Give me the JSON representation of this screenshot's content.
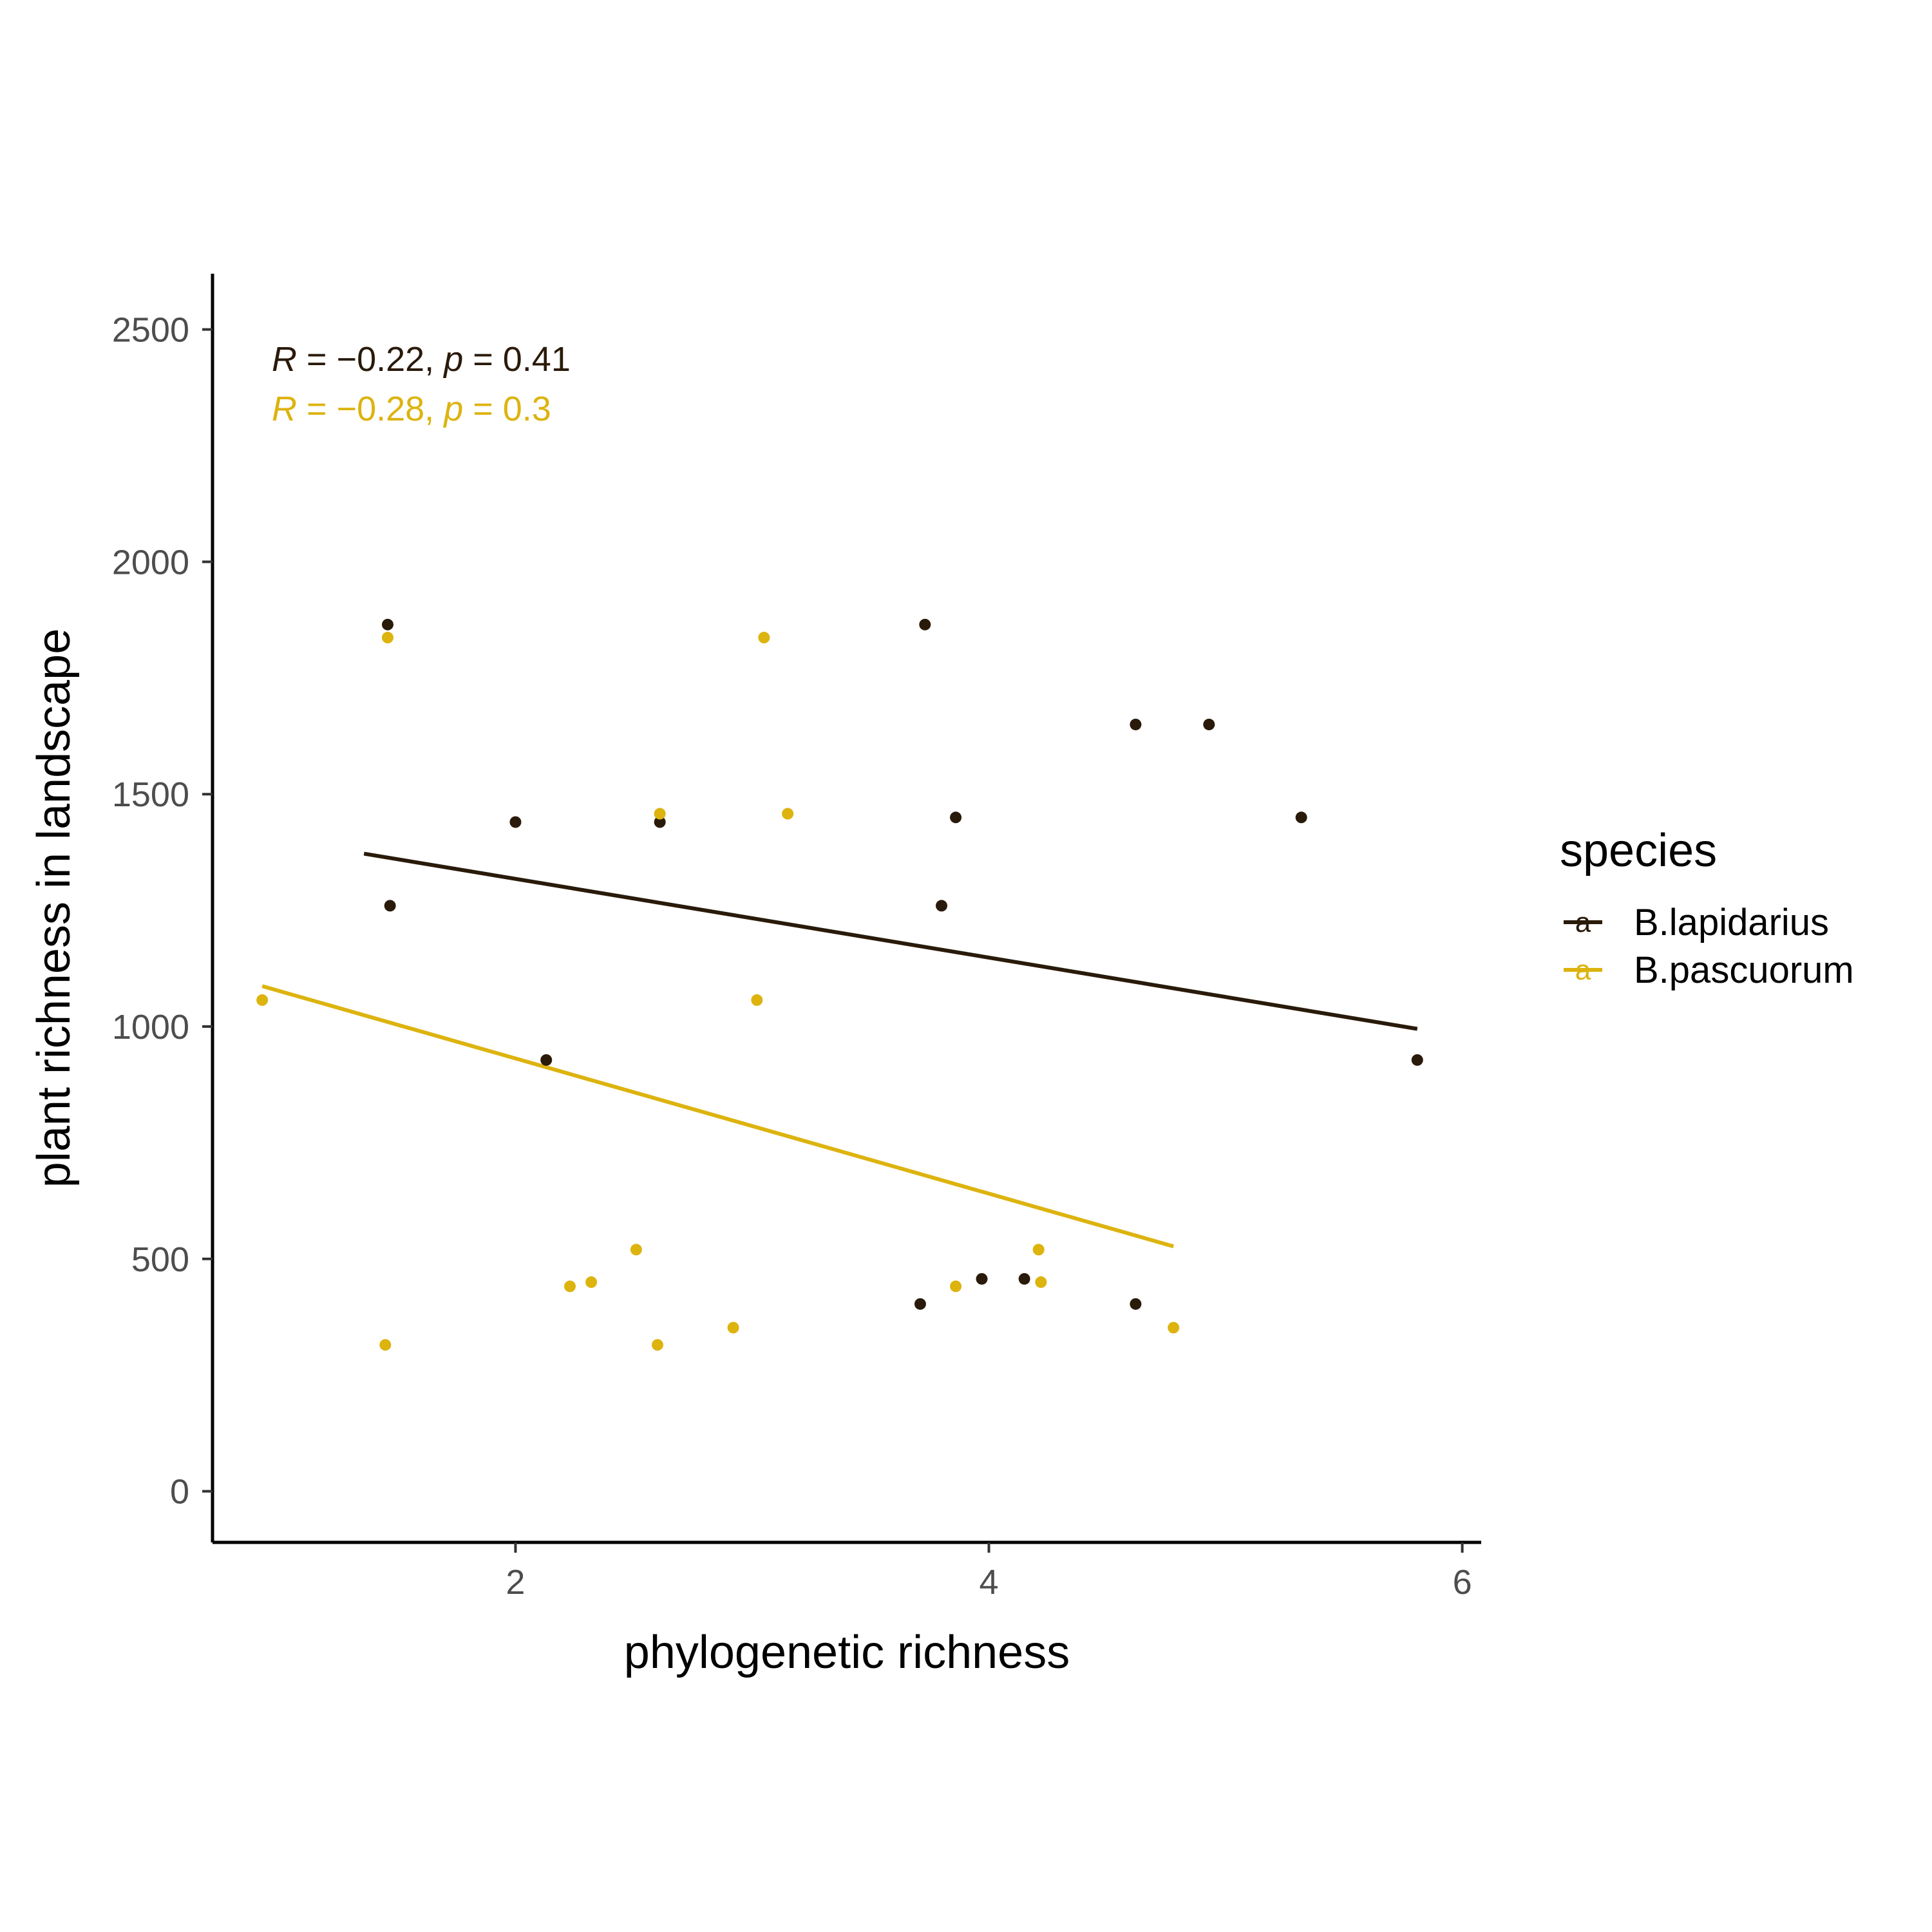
{
  "chart_data": {
    "type": "scatter",
    "title": "",
    "xlabel": "phylogenetic richness",
    "ylabel": "plant richness in landscape",
    "xlim": [
      0.72,
      6.08
    ],
    "ylim": [
      -110,
      2620
    ],
    "x_ticks": [
      2,
      4,
      6
    ],
    "y_ticks": [
      0,
      500,
      1000,
      1500,
      2000,
      2500
    ],
    "grid": false,
    "legend": {
      "title": "species",
      "position": "right",
      "key_glyph": "a"
    },
    "series": [
      {
        "name": "B.lapidarius",
        "color": "#2a1a0a",
        "points": [
          [
            1.46,
            1865
          ],
          [
            1.47,
            1260
          ],
          [
            2.0,
            1440
          ],
          [
            2.13,
            928
          ],
          [
            2.61,
            1440
          ],
          [
            3.71,
            403
          ],
          [
            3.73,
            1865
          ],
          [
            3.8,
            1260
          ],
          [
            3.86,
            1450
          ],
          [
            3.97,
            457
          ],
          [
            4.15,
            457
          ],
          [
            4.62,
            1650
          ],
          [
            4.62,
            403
          ],
          [
            4.93,
            1650
          ],
          [
            5.32,
            1450
          ],
          [
            5.81,
            928
          ]
        ],
        "fit": {
          "x": [
            1.36,
            5.81
          ],
          "y": [
            1372,
            995
          ]
        },
        "stats": {
          "R": "−0.22",
          "p": "0.41"
        }
      },
      {
        "name": "B.pascuorum",
        "color": "#ddb30e",
        "points": [
          [
            0.93,
            1057
          ],
          [
            1.45,
            315
          ],
          [
            1.46,
            1837
          ],
          [
            2.23,
            441
          ],
          [
            2.32,
            450
          ],
          [
            2.51,
            520
          ],
          [
            2.6,
            315
          ],
          [
            2.61,
            1458
          ],
          [
            2.92,
            352
          ],
          [
            3.02,
            1057
          ],
          [
            3.05,
            1837
          ],
          [
            3.15,
            1458
          ],
          [
            3.86,
            441
          ],
          [
            4.21,
            520
          ],
          [
            4.22,
            450
          ],
          [
            4.78,
            352
          ]
        ],
        "fit": {
          "x": [
            0.93,
            4.78
          ],
          "y": [
            1087,
            527
          ]
        },
        "stats": {
          "R": "−0.28",
          "p": "0.3"
        }
      }
    ]
  }
}
